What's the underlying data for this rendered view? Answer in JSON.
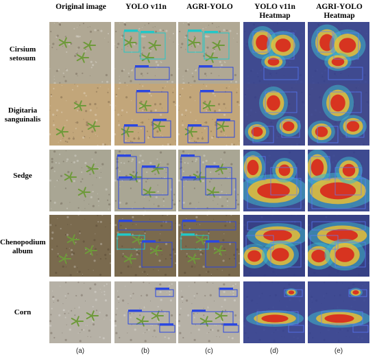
{
  "columns": [
    {
      "header": "Original image",
      "label": "(a)",
      "kind": "original"
    },
    {
      "header": "YOLO v11n",
      "label": "(b)",
      "kind": "detect"
    },
    {
      "header": "AGRI-YOLO",
      "label": "(c)",
      "kind": "detect"
    },
    {
      "header": "YOLO v11n Heatmap",
      "label": "(d)",
      "kind": "heatmap"
    },
    {
      "header": "AGRI-YOLO Heatmap",
      "label": "(e)",
      "kind": "heatmap"
    }
  ],
  "rows": [
    {
      "name": "Cirsium setosum",
      "soil": "#b0a894"
    },
    {
      "name": "Digitaria sanguinalis",
      "soil": "#c2a67a"
    },
    {
      "name": "Sedge",
      "soil": "#a9a694"
    },
    {
      "name": "Chenopodium album",
      "soil": "#7a6a4e"
    },
    {
      "name": "Corn",
      "soil": "#b6b1a6"
    }
  ],
  "colors": {
    "box_blue": "#2b47e0",
    "box_cyan": "#22c7c7",
    "heat_bg": "#2c3a8f",
    "heat_hot": "#d8261c",
    "heat_warm": "#f2c12e"
  }
}
